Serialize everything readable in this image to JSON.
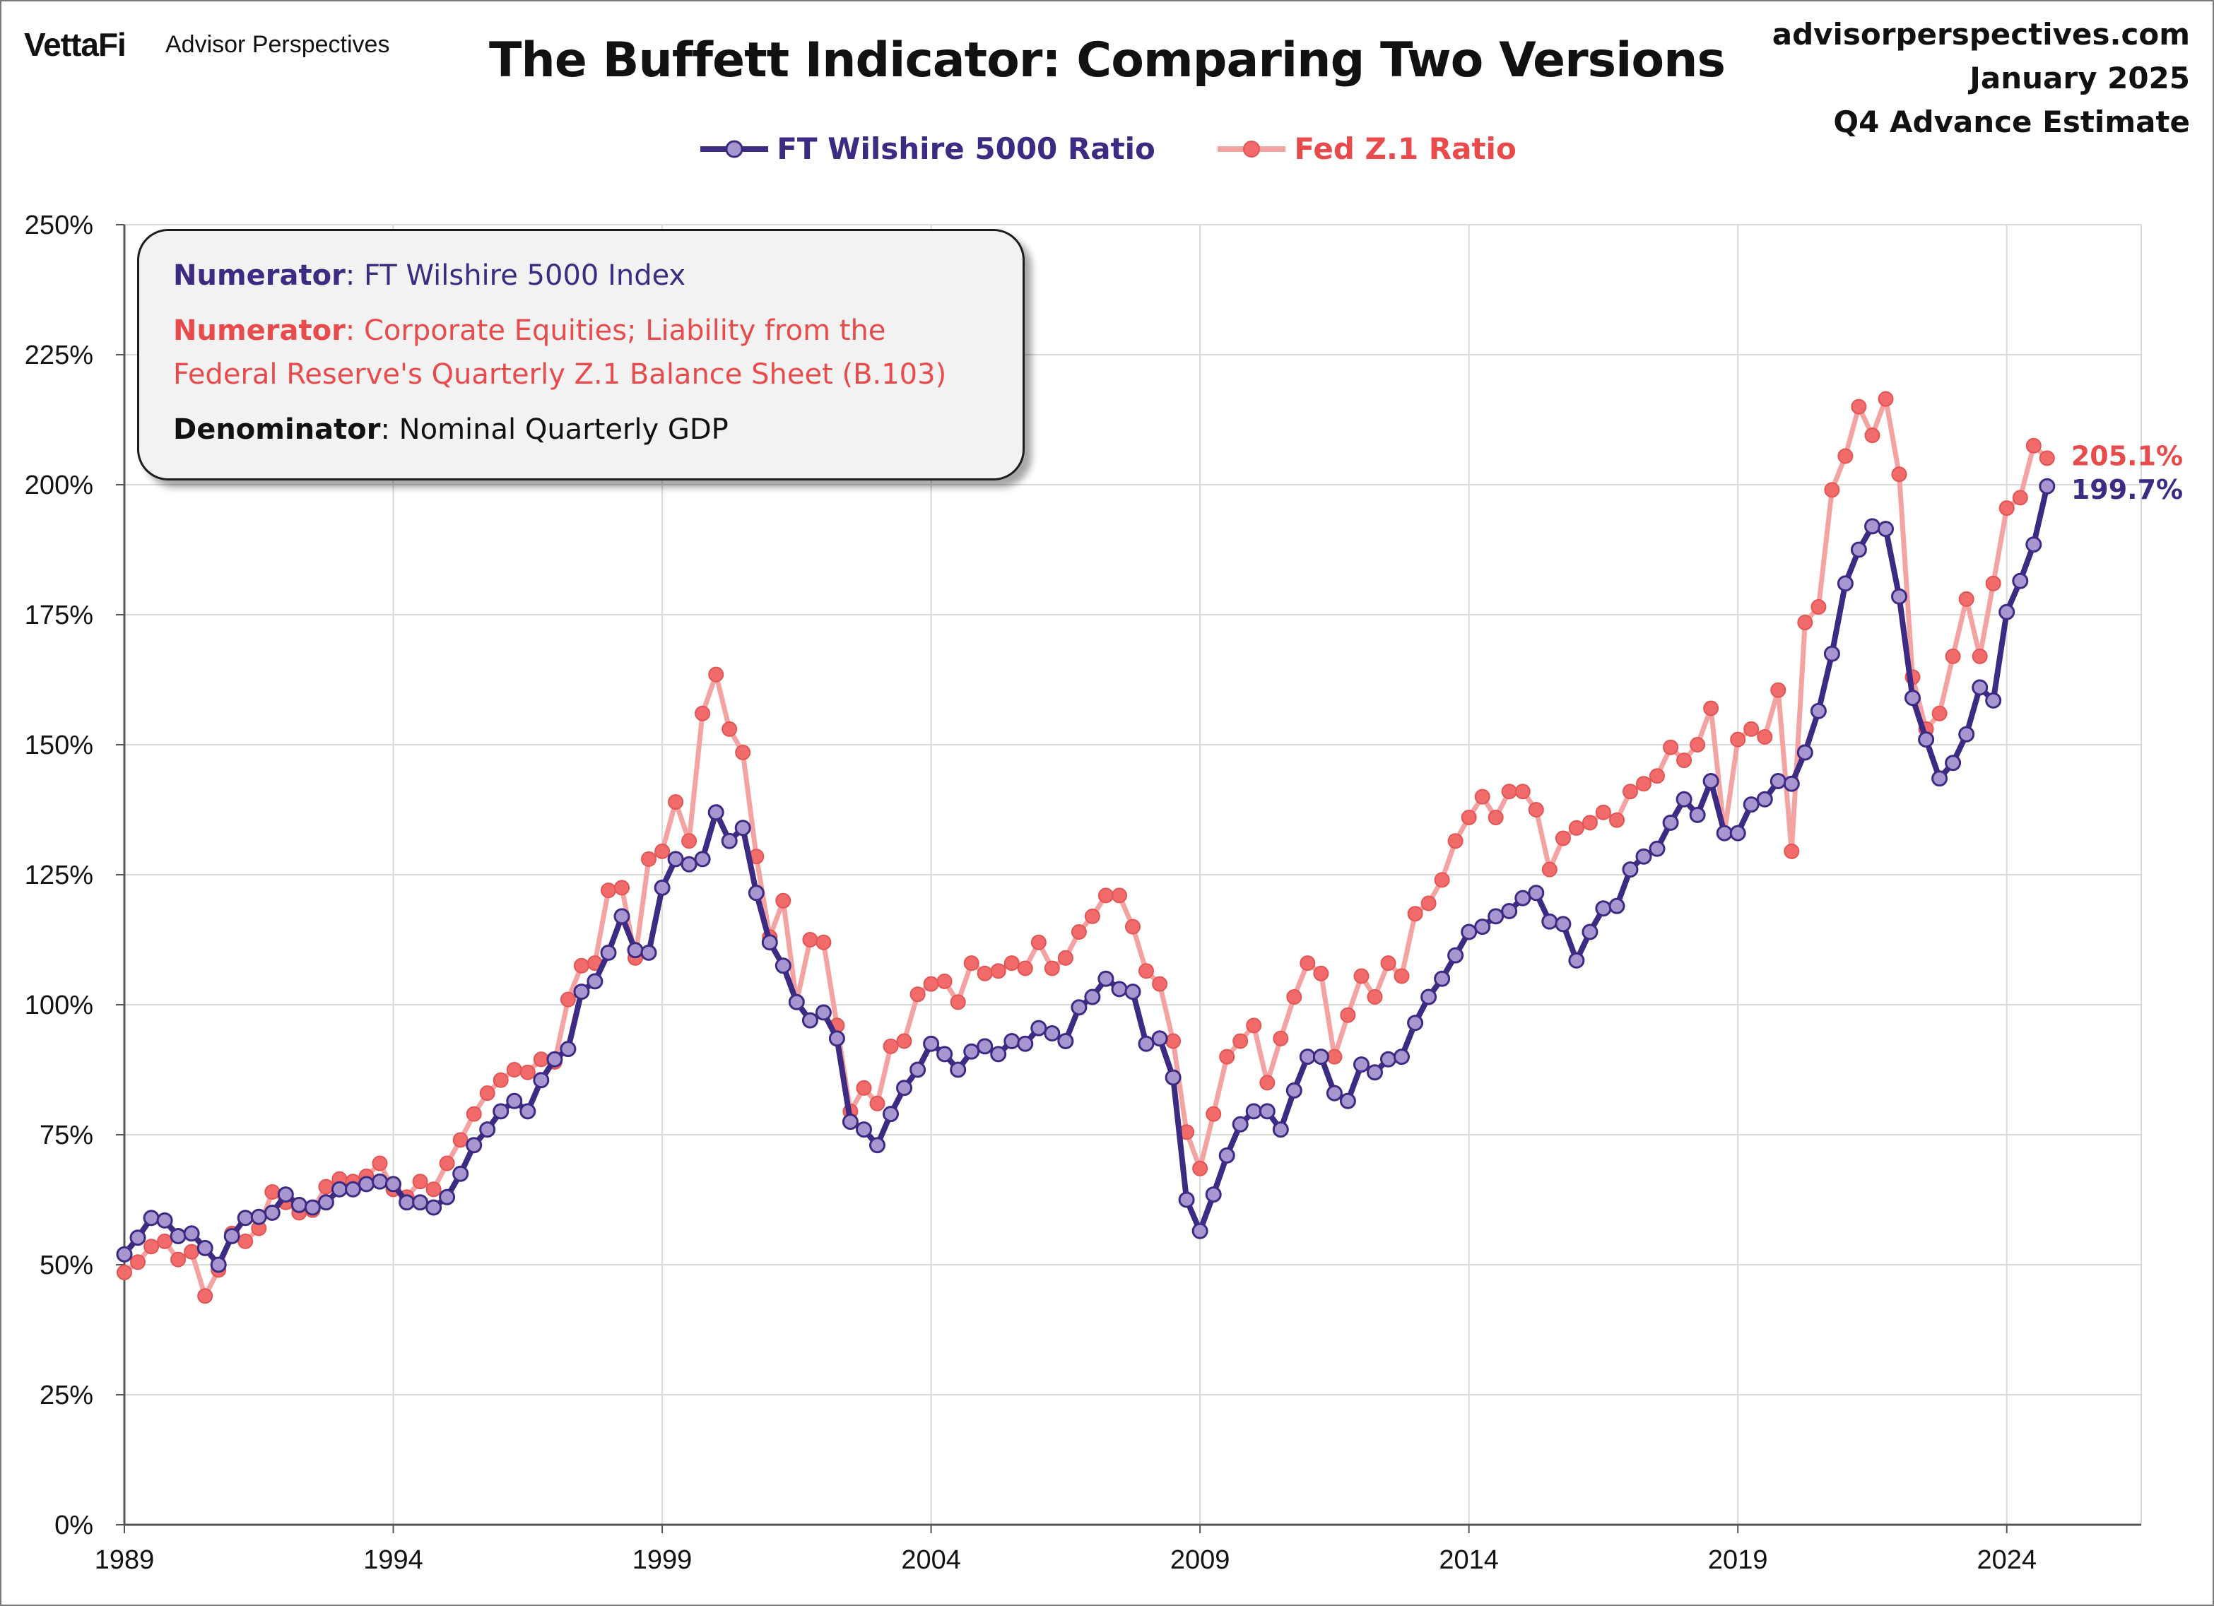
{
  "header": {
    "logo_primary": "VettaFi",
    "logo_secondary": "Advisor Perspectives",
    "title": "The Buffett Indicator: Comparing Two Versions",
    "site": "advisorperspectives.com",
    "date": "January 2025",
    "estimate": "Q4 Advance Estimate"
  },
  "legend": {
    "wilshire": "FT Wilshire 5000 Ratio",
    "fed": "Fed Z.1 Ratio"
  },
  "infobox": {
    "line1_label": "Numerator",
    "line1_text": ": FT Wilshire 5000 Index",
    "line2_label": "Numerator",
    "line2_text": ": Corporate Equities; Liability from the",
    "line3_text": "Federal Reserve's Quarterly Z.1 Balance Sheet (B.103)",
    "line4_label": "Denominator",
    "line4_text": ": Nominal Quarterly GDP"
  },
  "colors": {
    "wilshire_line": "#3d2a82",
    "wilshire_marker": "#a796cf",
    "fed_line": "#f4a3a3",
    "fed_marker": "#f26b6b",
    "fed_text": "#e84b4b",
    "wilshire_text": "#3d2a82",
    "grid": "#d9d9d9"
  },
  "chart_data": {
    "type": "line",
    "title": "The Buffett Indicator: Comparing Two Versions",
    "xlabel": "",
    "ylabel": "",
    "xlim": [
      1989,
      2026.5
    ],
    "ylim": [
      0,
      250
    ],
    "x_ticks": [
      1989,
      1994,
      1999,
      2004,
      2009,
      2014,
      2019,
      2024
    ],
    "y_ticks": [
      "0%",
      "25%",
      "50%",
      "75%",
      "100%",
      "125%",
      "150%",
      "175%",
      "200%",
      "225%",
      "250%"
    ],
    "grid": true,
    "legend_position": "top-center",
    "x_start": 1989.0,
    "x_step": 0.25,
    "series": [
      {
        "name": "FT Wilshire 5000 Ratio",
        "end_label": "199.7%",
        "values": [
          52.0,
          55.2,
          59.0,
          58.5,
          55.5,
          56.0,
          53.2,
          50.0,
          55.5,
          59.0,
          59.2,
          60.0,
          63.5,
          61.5,
          61.0,
          62.0,
          64.5,
          64.5,
          65.5,
          66.0,
          65.5,
          62.0,
          62.0,
          61.0,
          63.0,
          67.5,
          73.0,
          76.0,
          79.5,
          81.5,
          79.5,
          85.5,
          89.5,
          91.5,
          102.5,
          104.5,
          110.0,
          117.0,
          110.5,
          110.0,
          122.5,
          128.0,
          127.0,
          128.0,
          137.0,
          131.5,
          134.0,
          121.5,
          112.0,
          107.5,
          100.5,
          97.0,
          98.5,
          93.5,
          77.5,
          76.0,
          73.0,
          79.0,
          84.0,
          87.5,
          92.5,
          90.5,
          87.5,
          91.0,
          92.0,
          90.5,
          93.0,
          92.5,
          95.5,
          94.5,
          93.0,
          99.5,
          101.5,
          105.0,
          103.0,
          102.5,
          92.5,
          93.5,
          86.0,
          62.5,
          56.5,
          63.5,
          71.0,
          77.0,
          79.5,
          79.5,
          76.0,
          83.5,
          90.0,
          90.0,
          83.0,
          81.5,
          88.5,
          87.0,
          89.5,
          90.0,
          96.5,
          101.5,
          105.0,
          109.5,
          114.0,
          115.0,
          117.0,
          118.0,
          120.5,
          121.5,
          116.0,
          115.5,
          108.5,
          114.0,
          118.5,
          119.0,
          126.0,
          128.5,
          130.0,
          135.0,
          139.5,
          136.5,
          143.0,
          133.0,
          133.0,
          138.5,
          139.5,
          143.0,
          142.5,
          148.5,
          156.5,
          167.5,
          181.0,
          187.5,
          192.0,
          191.5,
          178.5,
          159.0,
          151.0,
          143.5,
          146.5,
          152.0,
          161.0,
          158.5,
          175.5,
          181.5,
          188.5,
          199.7
        ]
      },
      {
        "name": "Fed Z.1 Ratio",
        "end_label": "205.1%",
        "values": [
          48.5,
          50.5,
          53.5,
          54.5,
          51.0,
          52.5,
          44.0,
          49.0,
          56.0,
          54.5,
          57.0,
          64.0,
          62.0,
          60.0,
          60.5,
          65.0,
          66.5,
          66.0,
          67.0,
          69.5,
          64.5,
          63.0,
          66.0,
          64.5,
          69.5,
          74.0,
          79.0,
          83.0,
          85.5,
          87.5,
          87.0,
          89.5,
          89.0,
          101.0,
          107.5,
          108.0,
          122.0,
          122.5,
          109.0,
          128.0,
          129.5,
          139.0,
          131.5,
          156.0,
          163.5,
          153.0,
          148.5,
          128.5,
          113.0,
          120.0,
          100.5,
          112.5,
          112.0,
          96.0,
          79.5,
          84.0,
          81.0,
          92.0,
          93.0,
          102.0,
          104.0,
          104.5,
          100.5,
          108.0,
          106.0,
          106.5,
          108.0,
          107.0,
          112.0,
          107.0,
          109.0,
          114.0,
          117.0,
          121.0,
          121.0,
          115.0,
          106.5,
          104.0,
          93.0,
          75.5,
          68.5,
          79.0,
          90.0,
          93.0,
          96.0,
          85.0,
          93.5,
          101.5,
          108.0,
          106.0,
          90.0,
          98.0,
          105.5,
          101.5,
          108.0,
          105.5,
          117.5,
          119.5,
          124.0,
          131.5,
          136.0,
          140.0,
          136.0,
          141.0,
          141.0,
          137.5,
          126.0,
          132.0,
          134.0,
          135.0,
          137.0,
          135.5,
          141.0,
          142.5,
          144.0,
          149.5,
          147.0,
          150.0,
          157.0,
          133.0,
          151.0,
          153.0,
          151.5,
          160.5,
          129.5,
          173.5,
          176.5,
          199.0,
          205.5,
          215.0,
          209.5,
          216.5,
          202.0,
          163.0,
          153.0,
          156.0,
          167.0,
          178.0,
          167.0,
          181.0,
          195.5,
          197.5,
          207.5,
          205.1
        ]
      }
    ]
  }
}
